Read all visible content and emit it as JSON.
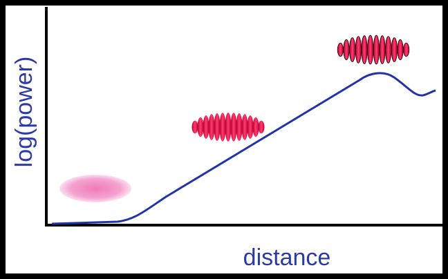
{
  "axes": {
    "y_label": "log(power)",
    "x_label": "distance"
  }
}
